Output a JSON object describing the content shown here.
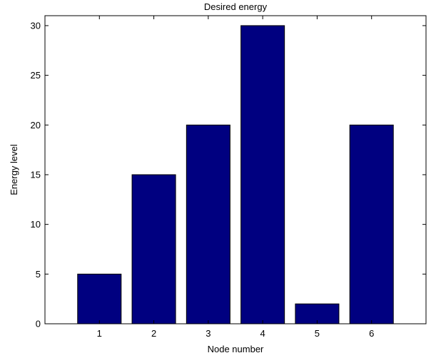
{
  "chart_data": {
    "type": "bar",
    "title": "Desired energy",
    "xlabel": "Node number",
    "ylabel": "Energy level",
    "categories": [
      "1",
      "2",
      "3",
      "4",
      "5",
      "6"
    ],
    "values": [
      5,
      15,
      20,
      30,
      2,
      20
    ],
    "ylim": [
      0,
      31
    ],
    "yticks": [
      "0",
      "5",
      "10",
      "15",
      "20",
      "25",
      "30"
    ],
    "grid": false,
    "bar_color": "#000080",
    "bar_edge_color": "#000000"
  }
}
